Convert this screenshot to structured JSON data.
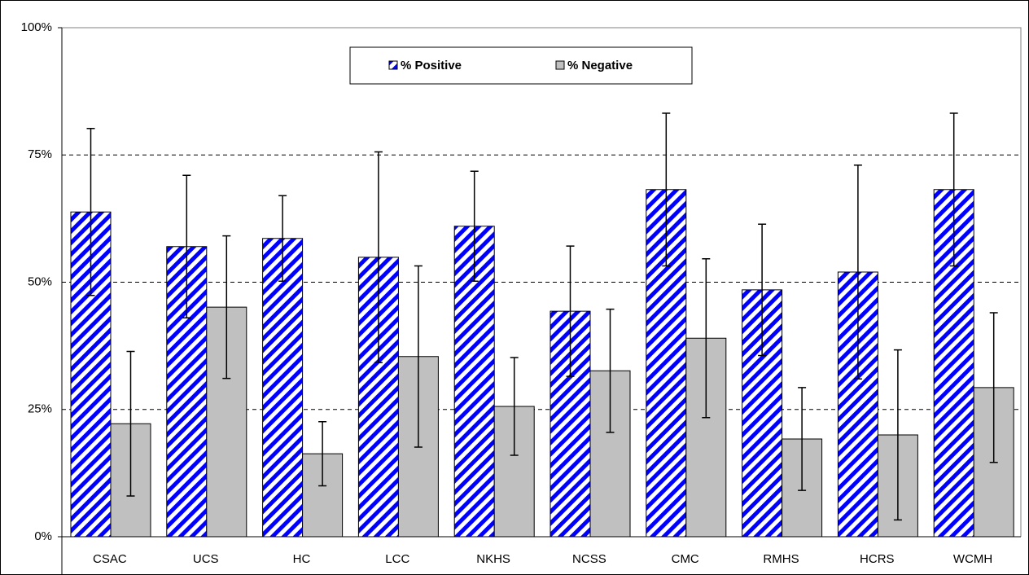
{
  "chart_data": {
    "type": "bar",
    "categories": [
      "CSAC",
      "UCS",
      "HC",
      "LCC",
      "NKHS",
      "NCSS",
      "CMC",
      "RMHS",
      "HCRS",
      "WCMH"
    ],
    "series": [
      {
        "name": "% Positive",
        "color": "#0000ff",
        "pattern": "hatch",
        "values": [
          63.8,
          57.0,
          58.6,
          54.9,
          61.0,
          44.3,
          68.2,
          48.5,
          52.0,
          68.2
        ],
        "errors": [
          16.4,
          14.0,
          8.4,
          20.7,
          10.8,
          12.8,
          15.0,
          12.9,
          21.0,
          15.0
        ]
      },
      {
        "name": "% Negative",
        "color": "#c0c0c0",
        "pattern": "solid",
        "values": [
          22.2,
          45.1,
          16.3,
          35.4,
          25.6,
          32.6,
          39.0,
          19.2,
          20.0,
          29.3
        ],
        "errors": [
          14.2,
          14.0,
          6.3,
          17.8,
          9.6,
          12.1,
          15.6,
          10.1,
          16.7,
          14.7
        ]
      }
    ],
    "ylim": [
      0,
      100
    ],
    "yticks": [
      {
        "value": 0,
        "label": "0%"
      },
      {
        "value": 25,
        "label": "25%"
      },
      {
        "value": 50,
        "label": "50%"
      },
      {
        "value": 75,
        "label": "75%"
      },
      {
        "value": 100,
        "label": "100%"
      }
    ],
    "grid": true,
    "legend": "top"
  }
}
